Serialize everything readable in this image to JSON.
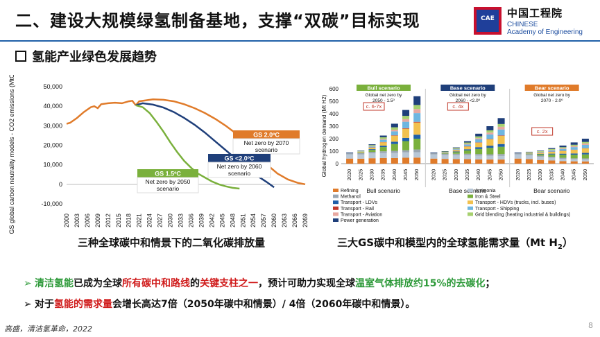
{
  "slide": {
    "title": "二、建设大规模绿氢制备基地，支撑“双碳”目标实现",
    "subtitle": "氢能产业绿色发展趋势",
    "page_number": "8",
    "footer": "高盛，清洁氢革命，2022"
  },
  "logo": {
    "mark_text": "CAE",
    "cn": "中国工程院",
    "en_line1": "CHINESE",
    "en_line2": "Academy of Engineering",
    "colors": {
      "red": "#c8102e",
      "blue": "#1f3f9a"
    }
  },
  "captions": {
    "left": "三种全球碳中和情景下的二氧化碳排放量",
    "right": "三大GS碳中和模型内的全球氢能需求量（Mt H",
    "right_sub": "2",
    "right_end": "）"
  },
  "bullets": [
    {
      "arrow": "➢",
      "parts": [
        {
          "text": "清洁氢能",
          "style": "g"
        },
        {
          "text": "已成为全球",
          "style": ""
        },
        {
          "text": "所有碳中和路线",
          "style": "r"
        },
        {
          "text": "的",
          "style": ""
        },
        {
          "text": "关键支柱之一",
          "style": "r"
        },
        {
          "text": "，预计可助力实现全球",
          "style": ""
        },
        {
          "text": "温室气体排放约15%的去碳化",
          "style": "g"
        },
        {
          "text": "；",
          "style": ""
        }
      ]
    },
    {
      "arrow": "➢",
      "parts": [
        {
          "text": "对于",
          "style": ""
        },
        {
          "text": "氢能的需求量",
          "style": "r"
        },
        {
          "text": "会增长高达7倍（2050年碳中和情景）/ 4倍（2060年碳中和情景）。",
          "style": ""
        }
      ]
    }
  ],
  "chart_data": [
    {
      "type": "line",
      "ylabel": "GS global carbon neutrality models - CO2 emissions (MtCO2eq)",
      "ylim": [
        -10000,
        50000
      ],
      "yticks": [
        "-10,000",
        "0",
        "10,000",
        "20,000",
        "30,000",
        "40,000",
        "50,000"
      ],
      "yticks_values": [
        -10000,
        0,
        10000,
        20000,
        30000,
        40000,
        50000
      ],
      "xticks": [
        "2000",
        "2003",
        "2006",
        "2009",
        "2012",
        "2015",
        "2018",
        "2021",
        "2024",
        "2027",
        "2030",
        "2033",
        "2036",
        "2039",
        "2042",
        "2045",
        "2048",
        "2051",
        "2054",
        "2057",
        "2060",
        "2063",
        "2066",
        "2069"
      ],
      "xlim": [
        2000,
        2069
      ],
      "grid": false,
      "colors": {
        "history": "#e07b2a",
        "gs20": "#e07b2a",
        "gs_lt20": "#1f3f7a",
        "gs15": "#7ab03c"
      },
      "series": [
        {
          "key": "history",
          "x": [
            2000,
            2001,
            2003,
            2005,
            2007,
            2008,
            2009,
            2010,
            2012,
            2014,
            2016,
            2018,
            2019,
            2020
          ],
          "values": [
            31000,
            31500,
            34000,
            37000,
            39500,
            40000,
            39000,
            41000,
            41500,
            41800,
            41500,
            42500,
            42800,
            40500
          ]
        },
        {
          "key": "gs20",
          "x": [
            2020,
            2021,
            2025,
            2028,
            2031,
            2034,
            2037,
            2040,
            2043,
            2046,
            2049,
            2052,
            2055,
            2058,
            2061,
            2064,
            2067,
            2069
          ],
          "values": [
            40500,
            42500,
            43500,
            43300,
            42500,
            41000,
            39000,
            36500,
            33500,
            30000,
            26000,
            21000,
            15500,
            10000,
            5500,
            2500,
            700,
            0
          ]
        },
        {
          "key": "gs_lt20",
          "x": [
            2020,
            2022,
            2025,
            2028,
            2031,
            2034,
            2037,
            2040,
            2043,
            2046,
            2049,
            2052,
            2055,
            2058,
            2060
          ],
          "values": [
            40500,
            41500,
            40800,
            39300,
            37000,
            34000,
            30500,
            26500,
            22000,
            17500,
            13000,
            8500,
            4500,
            1000,
            -1500
          ]
        },
        {
          "key": "gs15",
          "x": [
            2020,
            2022,
            2024,
            2026,
            2028,
            2030,
            2032,
            2034,
            2036,
            2038,
            2040,
            2042,
            2044,
            2046,
            2048,
            2050
          ],
          "values": [
            40500,
            39500,
            36500,
            32000,
            27000,
            21500,
            16500,
            12000,
            8500,
            5500,
            3500,
            1500,
            0,
            -1000,
            -1800,
            -2200
          ]
        }
      ],
      "annotations": [
        {
          "key": "gs20",
          "title": "GS 2.0ºC",
          "text1": "Net zero by 2070",
          "text2": "scenario",
          "color": "#e07b2a"
        },
        {
          "key": "gs_lt20",
          "title": "GS <2.0ºC",
          "text1": "Net zero by 2060",
          "text2": "scenario",
          "color": "#1f3f7a"
        },
        {
          "key": "gs15",
          "title": "GS 1.5ºC",
          "text1": "Net zero by 2050",
          "text2": "scenario",
          "color": "#7ab03c"
        }
      ]
    },
    {
      "type": "bar",
      "stacked": true,
      "ylabel": "Global hydrogen demand (Mt H2)",
      "ylim": [
        0,
        600
      ],
      "yticks": [
        "0",
        "100",
        "200",
        "300",
        "400",
        "500",
        "600"
      ],
      "yticks_values": [
        0,
        100,
        200,
        300,
        400,
        500,
        600
      ],
      "categories": [
        "2020",
        "2025",
        "2030",
        "2035",
        "2040",
        "2045",
        "2050"
      ],
      "groups": [
        {
          "name": "Bull scenario",
          "banner": "Bull scenario",
          "note1": "Global net zero by",
          "note2": "2050 - 1.5º",
          "callout": "c. 6-7x",
          "banner_color": "#7ab03c",
          "totals": [
            90,
            105,
            155,
            225,
            320,
            430,
            540
          ]
        },
        {
          "name": "Base scenario",
          "banner": "Base scenario",
          "note1": "Global net zero by",
          "note2": "2060 - <2.0º",
          "callout": "c. 4x",
          "banner_color": "#1f3f7a",
          "totals": [
            90,
            100,
            130,
            180,
            240,
            300,
            365
          ]
        },
        {
          "name": "Bear scenario",
          "banner": "Bear scenario",
          "note1": "Global net zero by",
          "note2": "2070 - 2.0º",
          "callout": "c. 2x",
          "banner_color": "#e07b2a",
          "totals": [
            90,
            95,
            105,
            125,
            145,
            170,
            200
          ]
        }
      ],
      "segments": [
        {
          "name": "Refining",
          "color": "#e07b2a",
          "share": [
            0.45,
            0.38,
            0.28,
            0.2,
            0.14,
            0.11,
            0.09
          ]
        },
        {
          "name": "Ammonia",
          "color": "#b8c7d6",
          "share": [
            0.38,
            0.32,
            0.25,
            0.18,
            0.13,
            0.1,
            0.08
          ]
        },
        {
          "name": "Methanol",
          "color": "#9aa6b2",
          "share": [
            0.12,
            0.1,
            0.08,
            0.06,
            0.05,
            0.04,
            0.04
          ]
        },
        {
          "name": "Iron & Steel",
          "color": "#7ab03c",
          "share": [
            0.0,
            0.04,
            0.1,
            0.15,
            0.17,
            0.17,
            0.16
          ]
        },
        {
          "name": "Transport - LDVs",
          "color": "#1f5fa8",
          "share": [
            0.0,
            0.02,
            0.04,
            0.05,
            0.06,
            0.06,
            0.06
          ]
        },
        {
          "name": "Transport - HDVs (trucks, incl. buses)",
          "color": "#f2c14e",
          "share": [
            0.0,
            0.04,
            0.08,
            0.12,
            0.15,
            0.17,
            0.18
          ]
        },
        {
          "name": "Transport - Rail",
          "color": "#c0392b",
          "share": [
            0.0,
            0.0,
            0.01,
            0.01,
            0.01,
            0.01,
            0.01
          ]
        },
        {
          "name": "Transport - Shipping",
          "color": "#6fb6e0",
          "share": [
            0.0,
            0.02,
            0.05,
            0.08,
            0.1,
            0.12,
            0.13
          ]
        },
        {
          "name": "Transport - Aviation",
          "color": "#e8a8a0",
          "share": [
            0.0,
            0.01,
            0.02,
            0.03,
            0.04,
            0.05,
            0.06
          ]
        },
        {
          "name": "Grid blending (heating industrial & buildings)",
          "color": "#a6d06e",
          "share": [
            0.0,
            0.04,
            0.05,
            0.06,
            0.06,
            0.06,
            0.06
          ]
        },
        {
          "name": "Power generation",
          "color": "#1f3f7a",
          "share": [
            0.05,
            0.03,
            0.04,
            0.06,
            0.09,
            0.11,
            0.13
          ]
        }
      ]
    }
  ]
}
